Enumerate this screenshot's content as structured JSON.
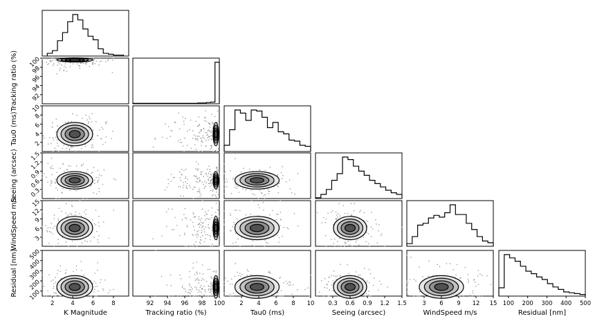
{
  "chart_data": {
    "type": "corner",
    "variables": [
      "K Magnitude",
      "Tracking ratio (%)",
      "Tau0 (ms)",
      "Seeing (arcsec)",
      "WindSpeed m/s",
      "Residual [nm]"
    ],
    "ranges": [
      [
        1,
        9.5
      ],
      [
        90,
        100
      ],
      [
        0,
        10
      ],
      [
        0,
        1.5
      ],
      [
        0,
        15
      ],
      [
        50,
        500
      ]
    ],
    "ticks": [
      [
        "2",
        "4",
        "6",
        "8"
      ],
      [
        "92",
        "94",
        "96",
        "98",
        "100"
      ],
      [
        "2",
        "4",
        "6",
        "8",
        "10"
      ],
      [
        "0.3",
        "0.6",
        "0.9",
        "1.2",
        "1.5"
      ],
      [
        "3",
        "6",
        "9",
        "12",
        "15"
      ],
      [
        "100",
        "200",
        "300",
        "400",
        "500"
      ]
    ],
    "ytick_labels": [
      [
        "92",
        "94",
        "96",
        "98",
        "100"
      ],
      [
        "2",
        "4",
        "6",
        "8",
        "10"
      ],
      [
        "0.3",
        "0.6",
        "0.9",
        "1.2",
        "1.5"
      ],
      [
        "3",
        "6",
        "9",
        "12",
        "15"
      ],
      [
        "100",
        "200",
        "300",
        "400",
        "500"
      ]
    ],
    "histograms": [
      {
        "bins": [
          1.5,
          2.0,
          2.5,
          3.0,
          3.5,
          4.0,
          4.5,
          5.0,
          5.5,
          6.0,
          6.5,
          7.0,
          7.5,
          8.0,
          8.5,
          9.0
        ],
        "counts": [
          3,
          6,
          17,
          26,
          38,
          46,
          40,
          30,
          22,
          18,
          8,
          3,
          2,
          1,
          1
        ]
      },
      {
        "bins": [
          90,
          90.5,
          91,
          91.5,
          92,
          92.5,
          93,
          93.5,
          94,
          94.5,
          95,
          95.5,
          96,
          96.5,
          97,
          97.5,
          98,
          98.5,
          99,
          99.5,
          100
        ],
        "counts": [
          1,
          1,
          1,
          1,
          1,
          1,
          1,
          1,
          1,
          1,
          1,
          1,
          1,
          1,
          1,
          2,
          2,
          3,
          4,
          100
        ]
      },
      {
        "bins": [
          0,
          0.625,
          1.25,
          1.875,
          2.5,
          3.125,
          3.75,
          4.375,
          5.0,
          5.625,
          6.25,
          6.875,
          7.5,
          8.125,
          8.75,
          9.375,
          10
        ],
        "counts": [
          12,
          42,
          80,
          74,
          60,
          80,
          78,
          66,
          46,
          56,
          38,
          34,
          22,
          20,
          12,
          10
        ]
      },
      {
        "bins": [
          0,
          0.09375,
          0.1875,
          0.28125,
          0.375,
          0.46875,
          0.5625,
          0.65625,
          0.75,
          0.84375,
          0.9375,
          1.03125,
          1.125,
          1.21875,
          1.3125,
          1.40625,
          1.5
        ],
        "counts": [
          2,
          10,
          22,
          44,
          60,
          100,
          94,
          78,
          66,
          56,
          44,
          36,
          28,
          20,
          14,
          10
        ]
      },
      {
        "bins": [
          0,
          0.9375,
          1.875,
          2.8125,
          3.75,
          4.6875,
          5.625,
          6.5625,
          7.5,
          8.4375,
          9.375,
          10.3125,
          11.25,
          12.1875,
          13.125,
          14.0625,
          15
        ],
        "counts": [
          6,
          22,
          48,
          52,
          64,
          70,
          66,
          76,
          94,
          72,
          72,
          52,
          38,
          22,
          12,
          8
        ]
      },
      {
        "bins": [
          50,
          78.125,
          106.25,
          134.375,
          162.5,
          190.625,
          218.75,
          246.875,
          275,
          303.125,
          331.25,
          359.375,
          387.5,
          415.625,
          443.75,
          471.875,
          500
        ],
        "counts": [
          20,
          100,
          92,
          84,
          72,
          60,
          54,
          46,
          40,
          30,
          22,
          16,
          10,
          8,
          6,
          4
        ]
      }
    ],
    "title": "",
    "grid": false
  }
}
